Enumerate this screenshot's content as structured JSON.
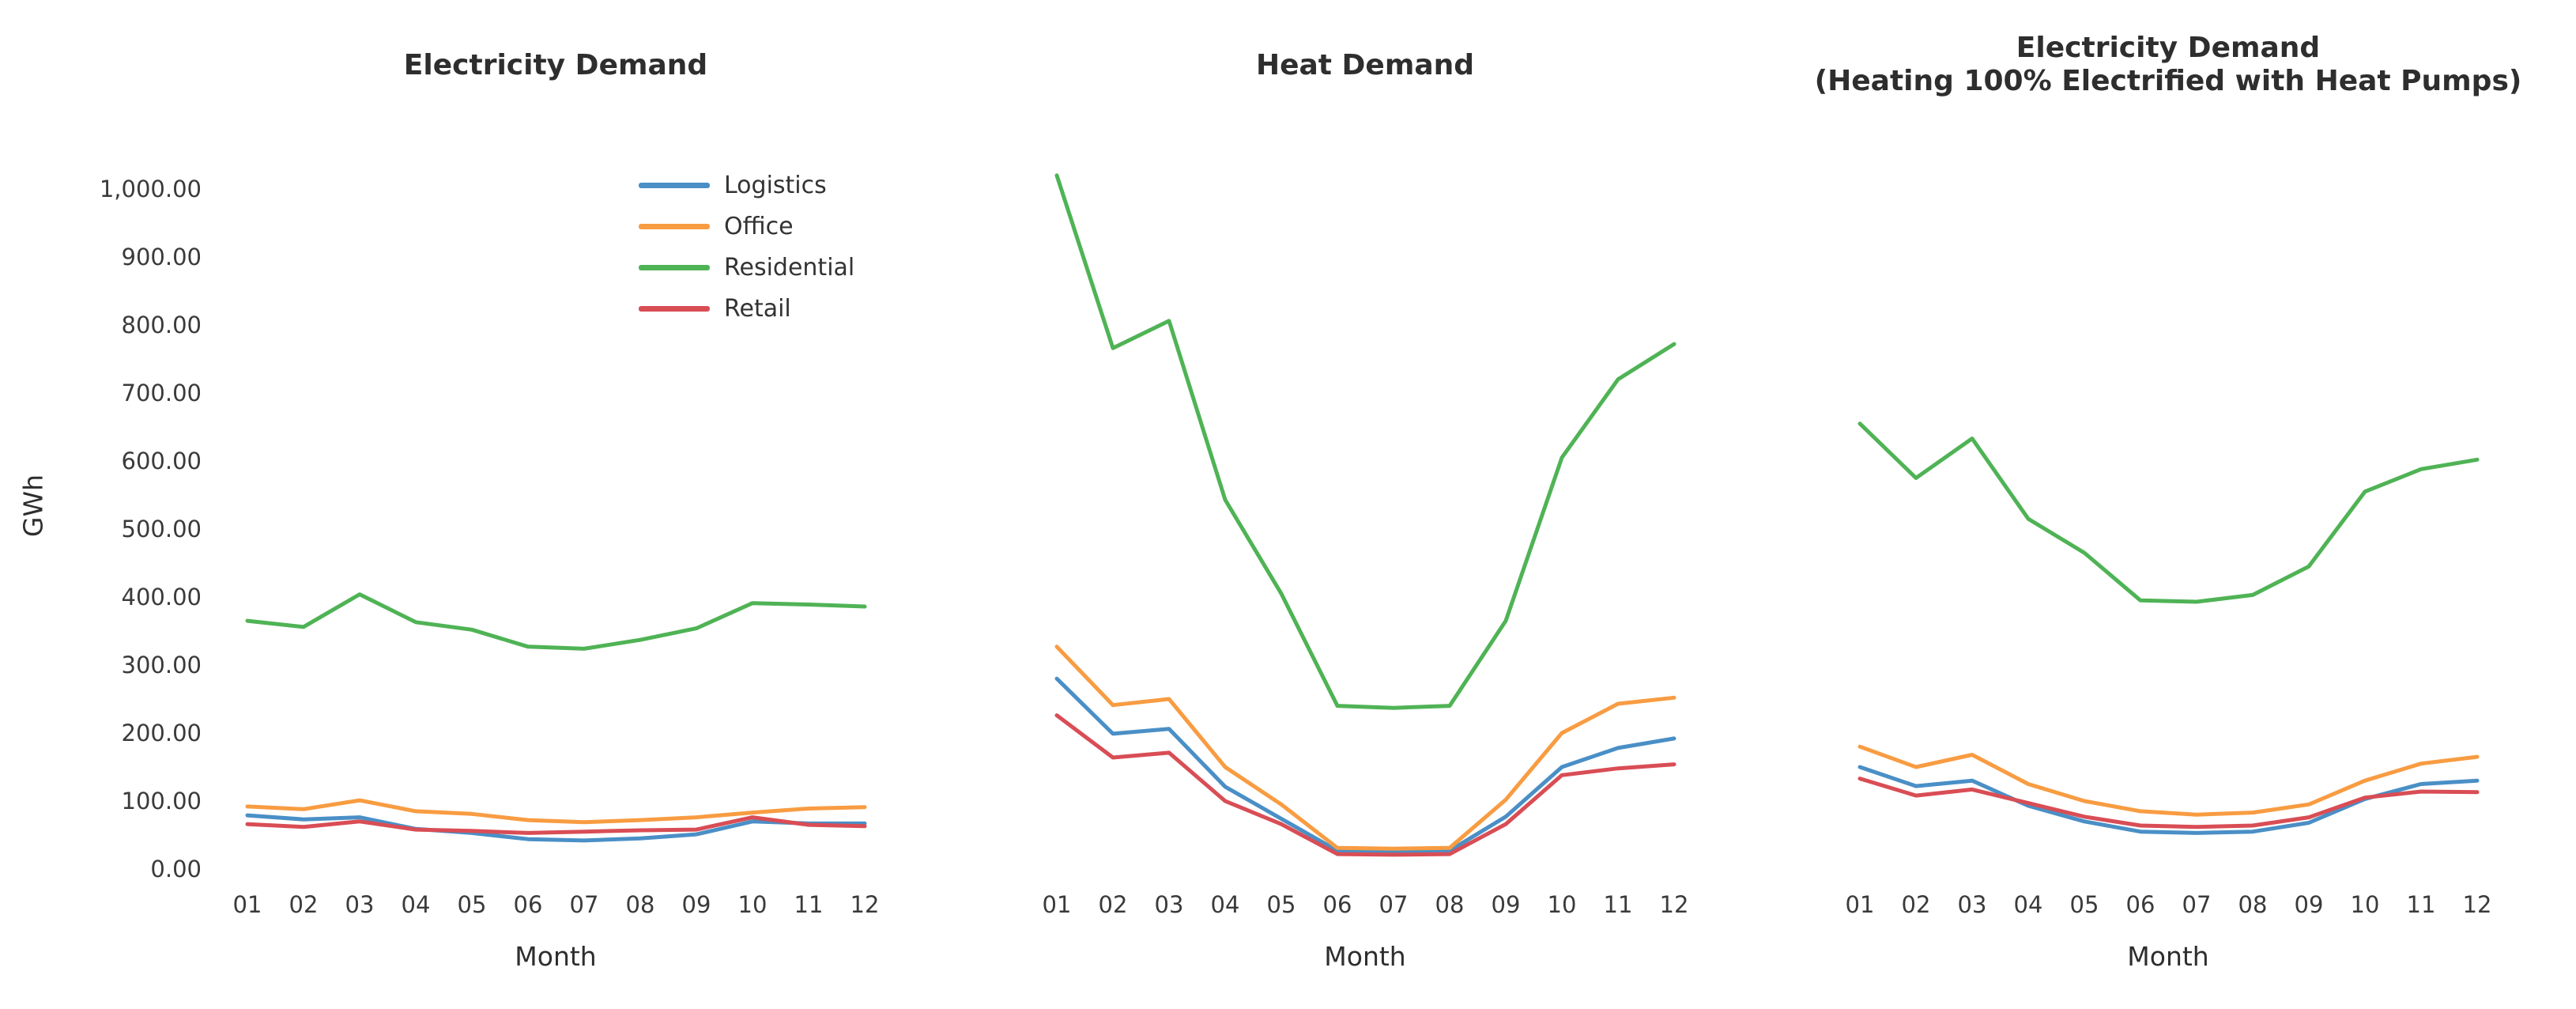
{
  "figure": {
    "ylabel": "GWh",
    "background": "#ffffff",
    "text_color": "#333333",
    "y_ticks": [
      {
        "label": "1,000.00",
        "value": 1000
      },
      {
        "label": "900.00",
        "value": 900
      },
      {
        "label": "800.00",
        "value": 800
      },
      {
        "label": "700.00",
        "value": 700
      },
      {
        "label": "600.00",
        "value": 600
      },
      {
        "label": "500.00",
        "value": 500
      },
      {
        "label": "400.00",
        "value": 400
      },
      {
        "label": "300.00",
        "value": 300
      },
      {
        "label": "200.00",
        "value": 200
      },
      {
        "label": "100.00",
        "value": 100
      },
      {
        "label": "0.00",
        "value": 0
      }
    ]
  },
  "legend": {
    "position": "upper-right-of-first-chart",
    "items": [
      {
        "label": "Logistics",
        "color": "#4a8fc6"
      },
      {
        "label": "Office",
        "color": "#f89c42"
      },
      {
        "label": "Residential",
        "color": "#4fb355"
      },
      {
        "label": "Retail",
        "color": "#d94d55"
      }
    ]
  },
  "chart_data": [
    {
      "type": "line",
      "title": "Electricity Demand",
      "subtitle": "",
      "xlabel": "Month",
      "ylabel": "GWh",
      "ylim": [
        0,
        1000
      ],
      "grid": false,
      "categories": [
        "01",
        "02",
        "03",
        "04",
        "05",
        "06",
        "07",
        "08",
        "09",
        "10",
        "11",
        "12"
      ],
      "series": [
        {
          "name": "Logistics",
          "color": "#4a8fc6",
          "values": [
            79,
            73,
            76,
            59,
            53,
            44,
            42,
            45,
            51,
            70,
            67,
            67
          ]
        },
        {
          "name": "Office",
          "color": "#f89c42",
          "values": [
            92,
            88,
            101,
            85,
            81,
            72,
            69,
            72,
            76,
            83,
            89,
            91
          ]
        },
        {
          "name": "Residential",
          "color": "#4fb355",
          "values": [
            365,
            356,
            404,
            363,
            352,
            327,
            324,
            337,
            354,
            391,
            389,
            386
          ]
        },
        {
          "name": "Retail",
          "color": "#d94d55",
          "values": [
            66,
            62,
            70,
            58,
            56,
            53,
            55,
            57,
            58,
            76,
            65,
            63
          ]
        }
      ]
    },
    {
      "type": "line",
      "title": "Heat Demand",
      "subtitle": "",
      "xlabel": "Month",
      "ylabel": "GWh",
      "ylim": [
        0,
        1000
      ],
      "grid": false,
      "categories": [
        "01",
        "02",
        "03",
        "04",
        "05",
        "06",
        "07",
        "08",
        "09",
        "10",
        "11",
        "12"
      ],
      "series": [
        {
          "name": "Logistics",
          "color": "#4a8fc6",
          "values": [
            280,
            199,
            206,
            121,
            74,
            27,
            26,
            27,
            77,
            150,
            178,
            192
          ]
        },
        {
          "name": "Office",
          "color": "#f89c42",
          "values": [
            327,
            241,
            250,
            150,
            95,
            31,
            30,
            31,
            102,
            200,
            243,
            252
          ]
        },
        {
          "name": "Residential",
          "color": "#4fb355",
          "values": [
            1020,
            766,
            806,
            543,
            405,
            240,
            237,
            240,
            365,
            605,
            720,
            772
          ]
        },
        {
          "name": "Retail",
          "color": "#d94d55",
          "values": [
            226,
            164,
            171,
            100,
            66,
            22,
            21,
            22,
            66,
            138,
            148,
            154
          ]
        }
      ]
    },
    {
      "type": "line",
      "title": "Electricity Demand",
      "subtitle": "(Heating 100% Electrified with Heat Pumps)",
      "xlabel": "Month",
      "ylabel": "GWh",
      "ylim": [
        0,
        1000
      ],
      "grid": false,
      "categories": [
        "01",
        "02",
        "03",
        "04",
        "05",
        "06",
        "07",
        "08",
        "09",
        "10",
        "11",
        "12"
      ],
      "series": [
        {
          "name": "Logistics",
          "color": "#4a8fc6",
          "values": [
            150,
            122,
            130,
            93,
            70,
            55,
            53,
            55,
            68,
            103,
            125,
            130
          ]
        },
        {
          "name": "Office",
          "color": "#f89c42",
          "values": [
            180,
            150,
            168,
            125,
            100,
            85,
            80,
            83,
            95,
            130,
            155,
            165
          ]
        },
        {
          "name": "Residential",
          "color": "#4fb355",
          "values": [
            655,
            575,
            633,
            515,
            465,
            395,
            393,
            403,
            445,
            555,
            588,
            602
          ]
        },
        {
          "name": "Retail",
          "color": "#d94d55",
          "values": [
            133,
            108,
            117,
            97,
            77,
            64,
            62,
            64,
            76,
            105,
            114,
            113
          ]
        }
      ]
    }
  ]
}
